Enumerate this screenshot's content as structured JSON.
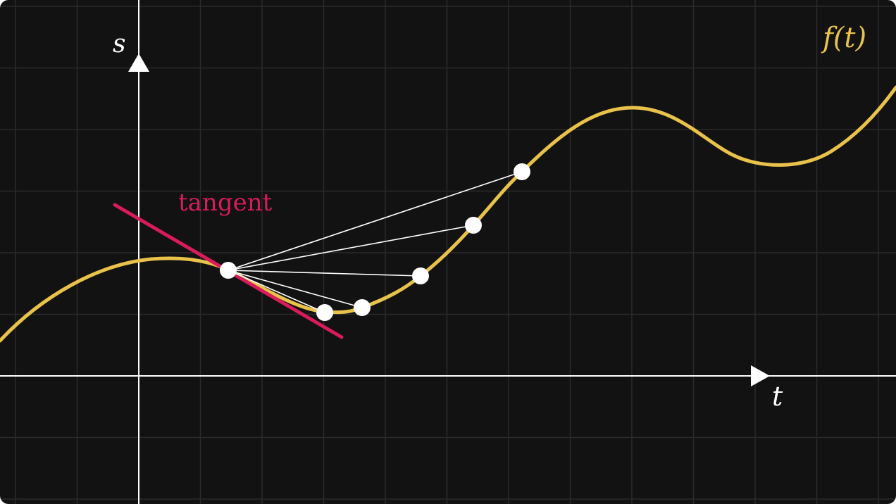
{
  "diagram": {
    "background_color": "#121212",
    "grid_color": "#2a2a2a",
    "axis_color": "#ffffff",
    "curve_color": "#e8c24a",
    "tangent_color": "#d81b5a",
    "secant_color": "#ffffff",
    "point_color": "#ffffff",
    "axes": {
      "vertical_label": "s",
      "horizontal_label": "t"
    },
    "function_label": "f(t)",
    "tangent_label": "tangent",
    "base_point_count": 1,
    "secant_point_count": 5
  }
}
